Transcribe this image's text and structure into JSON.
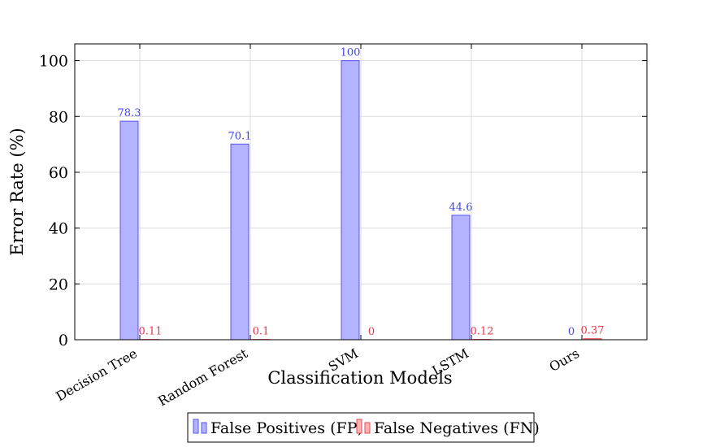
{
  "chart_data": {
    "type": "bar",
    "title": "",
    "xlabel": "Classification Models",
    "ylabel": "Error Rate (%)",
    "categories": [
      "Decision Tree",
      "Random Forest",
      "SVM",
      "LSTM",
      "Ours"
    ],
    "series": [
      {
        "name": "False Positives (FP)",
        "values": [
          78.3,
          70.1,
          100,
          44.6,
          0
        ],
        "labels": [
          "78.3",
          "70.1",
          "100",
          "44.6",
          "0"
        ],
        "color": "#b3b3ff",
        "stroke": "#5555ee"
      },
      {
        "name": "False Negatives (FN)",
        "values": [
          0.11,
          0.1,
          0,
          0.12,
          0.37
        ],
        "labels": [
          "0.11",
          "0.1",
          "0",
          "0.12",
          "0.37"
        ],
        "color": "#ffb3b3",
        "stroke": "#ee4455"
      }
    ],
    "ylim": [
      0,
      106
    ],
    "yticks": [
      0,
      20,
      40,
      60,
      80,
      100
    ],
    "grid": true,
    "legend_position": "bottom-center"
  }
}
